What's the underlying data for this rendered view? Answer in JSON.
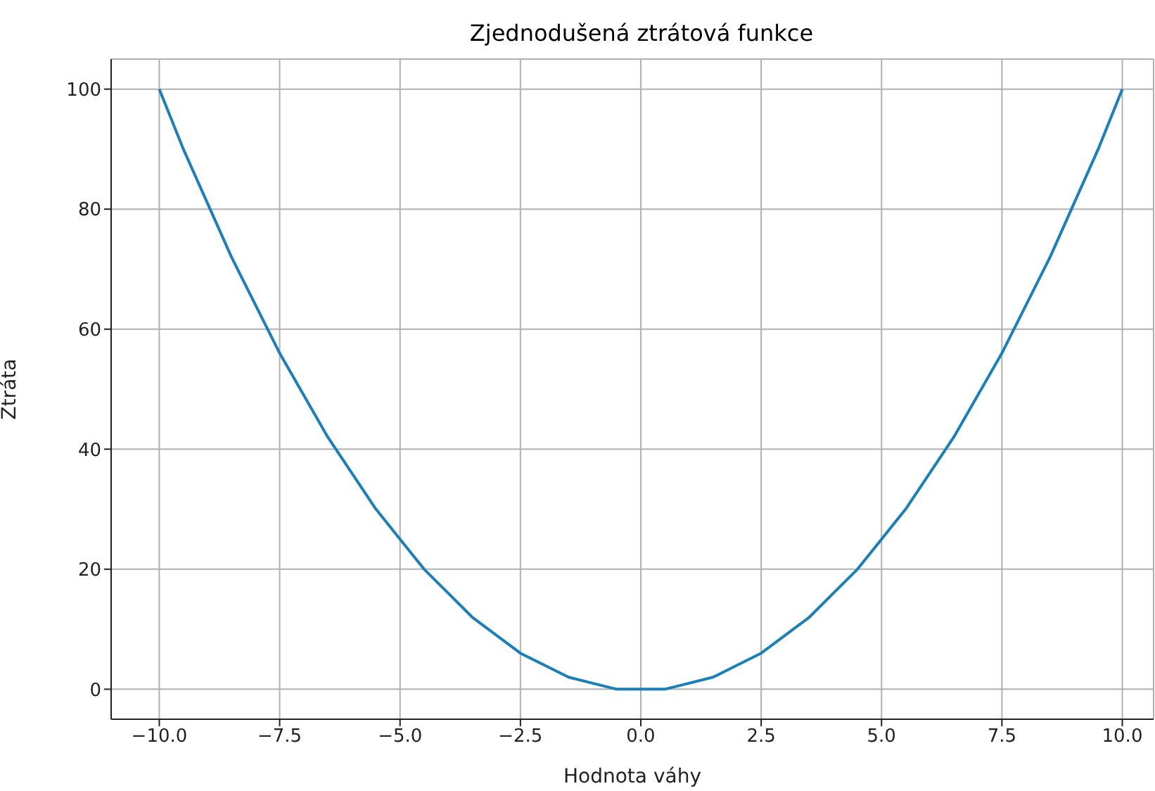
{
  "chart_data": {
    "type": "line",
    "title": "Zjednodušená ztrátová funkce",
    "xlabel": "Hodnota váhy",
    "ylabel": "Ztráta",
    "x": [
      -10,
      -9.5,
      -9,
      -8.5,
      -8,
      -7.5,
      -7,
      -6.5,
      -6,
      -5.5,
      -5,
      -4.5,
      -4,
      -3.5,
      -3,
      -2.5,
      -2,
      -1.5,
      -1,
      -0.5,
      0,
      0.5,
      1,
      1.5,
      2,
      2.5,
      3,
      3.5,
      4,
      4.5,
      5,
      5.5,
      6,
      6.5,
      7,
      7.5,
      8,
      8.5,
      9,
      9.5,
      10
    ],
    "series": [
      {
        "color": "#1a80bb",
        "values": [
          100,
          90,
          81,
          72,
          64,
          56,
          49,
          42,
          36,
          30,
          25,
          20,
          16,
          12,
          9,
          6,
          4,
          2,
          1,
          0,
          0,
          0,
          1,
          2,
          4,
          6,
          9,
          12,
          16,
          20,
          25,
          30,
          36,
          42,
          49,
          56,
          64,
          72,
          81,
          90,
          100
        ]
      }
    ],
    "xlim": [
      -11,
      10.65
    ],
    "ylim": [
      -5,
      105
    ],
    "xticks": [
      {
        "value": -10,
        "label": "−10.0"
      },
      {
        "value": -7.5,
        "label": "−7.5"
      },
      {
        "value": -5,
        "label": "−5.0"
      },
      {
        "value": -2.5,
        "label": "−2.5"
      },
      {
        "value": 0,
        "label": "0.0"
      },
      {
        "value": 2.5,
        "label": "2.5"
      },
      {
        "value": 5,
        "label": "5.0"
      },
      {
        "value": 7.5,
        "label": "7.5"
      },
      {
        "value": 10,
        "label": "10.0"
      }
    ],
    "yticks": [
      0,
      20,
      40,
      60,
      80,
      100
    ],
    "grid": true,
    "marker": "none",
    "line_style": "solid"
  }
}
